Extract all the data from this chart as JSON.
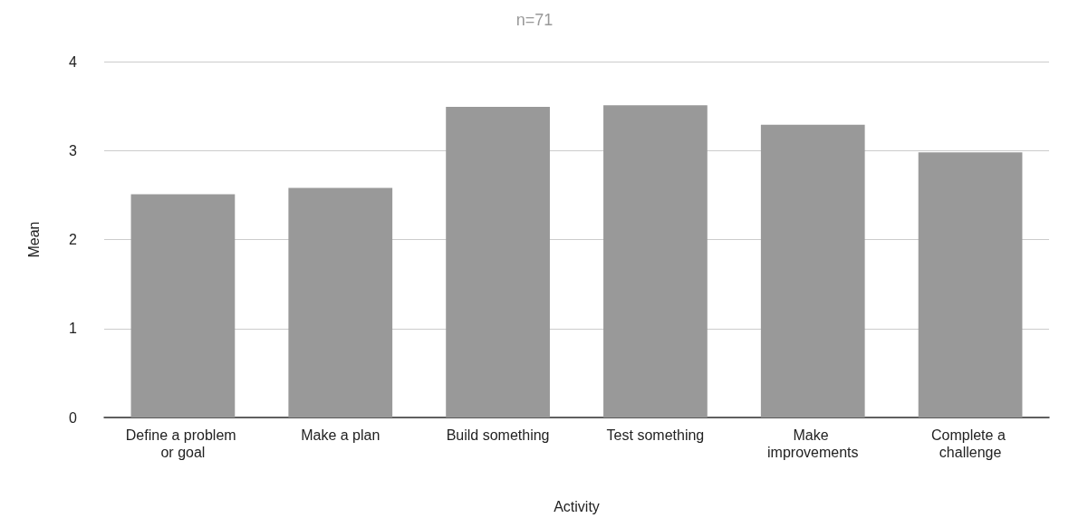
{
  "chart_data": {
    "type": "bar",
    "title": "n=71",
    "xlabel": "Activity",
    "ylabel": "Mean",
    "categories": [
      "Define a problem or goal",
      "Make a plan",
      "Build something",
      "Test something",
      "Make improvements",
      "Complete a challenge"
    ],
    "values": [
      2.51,
      2.58,
      3.49,
      3.51,
      3.29,
      2.98
    ],
    "color": "#999999",
    "ylim": [
      0,
      4
    ],
    "yticks": [
      0,
      1,
      2,
      3,
      4
    ],
    "grid": "y"
  }
}
